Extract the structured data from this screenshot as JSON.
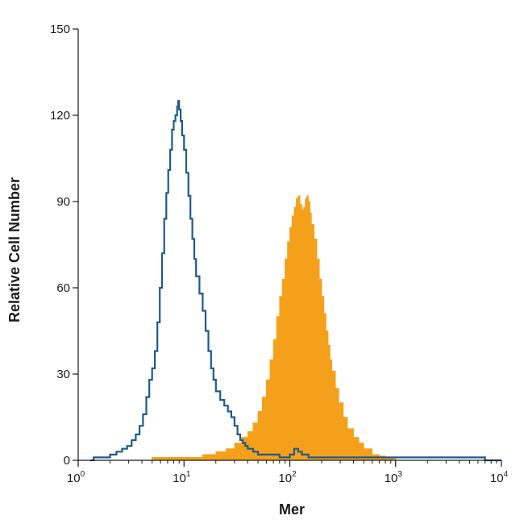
{
  "chart_data": {
    "type": "area",
    "xlabel": "Mer",
    "ylabel": "Relative Cell Number",
    "x_scale": "log",
    "xlim": [
      1,
      10000
    ],
    "ylim": [
      0,
      150
    ],
    "y_ticks": [
      0,
      30,
      60,
      90,
      120,
      150
    ],
    "x_ticks": [
      {
        "value": 1,
        "base": "10",
        "exp": "0"
      },
      {
        "value": 10,
        "base": "10",
        "exp": "1"
      },
      {
        "value": 100,
        "base": "10",
        "exp": "2"
      },
      {
        "value": 1000,
        "base": "10",
        "exp": "3"
      },
      {
        "value": 10000,
        "base": "10",
        "exp": "4"
      }
    ],
    "grid": false,
    "series": [
      {
        "style": "filled",
        "color": "#f5a01a",
        "points": [
          [
            1.5,
            0
          ],
          [
            3,
            0
          ],
          [
            5,
            1
          ],
          [
            10,
            1
          ],
          [
            15,
            2
          ],
          [
            20,
            3
          ],
          [
            25,
            4
          ],
          [
            30,
            6
          ],
          [
            35,
            8
          ],
          [
            40,
            10
          ],
          [
            45,
            13
          ],
          [
            50,
            17
          ],
          [
            55,
            22
          ],
          [
            60,
            28
          ],
          [
            65,
            35
          ],
          [
            70,
            42
          ],
          [
            75,
            50
          ],
          [
            80,
            57
          ],
          [
            85,
            63
          ],
          [
            90,
            70
          ],
          [
            95,
            76
          ],
          [
            100,
            81
          ],
          [
            105,
            85
          ],
          [
            110,
            88
          ],
          [
            115,
            91
          ],
          [
            120,
            92
          ],
          [
            125,
            89
          ],
          [
            130,
            87
          ],
          [
            135,
            88
          ],
          [
            140,
            91
          ],
          [
            145,
            92
          ],
          [
            150,
            90
          ],
          [
            155,
            86
          ],
          [
            160,
            82
          ],
          [
            170,
            77
          ],
          [
            180,
            70
          ],
          [
            190,
            63
          ],
          [
            200,
            57
          ],
          [
            210,
            51
          ],
          [
            220,
            45
          ],
          [
            230,
            40
          ],
          [
            240,
            35
          ],
          [
            250,
            31
          ],
          [
            270,
            25
          ],
          [
            290,
            20
          ],
          [
            320,
            15
          ],
          [
            350,
            11
          ],
          [
            400,
            8
          ],
          [
            450,
            6
          ],
          [
            500,
            4
          ],
          [
            600,
            2
          ],
          [
            700,
            1.5
          ],
          [
            800,
            1
          ],
          [
            1000,
            0
          ]
        ]
      },
      {
        "style": "line",
        "color": "#1e5a8c",
        "points": [
          [
            1.3,
            0
          ],
          [
            1.4,
            1
          ],
          [
            1.6,
            1
          ],
          [
            1.8,
            1
          ],
          [
            2,
            2
          ],
          [
            2.3,
            3
          ],
          [
            2.6,
            4
          ],
          [
            2.9,
            5
          ],
          [
            3.2,
            7
          ],
          [
            3.5,
            9
          ],
          [
            3.8,
            12
          ],
          [
            4.1,
            16
          ],
          [
            4.4,
            22
          ],
          [
            4.7,
            28
          ],
          [
            5.0,
            32
          ],
          [
            5.3,
            38
          ],
          [
            5.6,
            48
          ],
          [
            5.9,
            60
          ],
          [
            6.2,
            72
          ],
          [
            6.5,
            84
          ],
          [
            6.8,
            93
          ],
          [
            7.1,
            101
          ],
          [
            7.4,
            108
          ],
          [
            7.7,
            115
          ],
          [
            8.0,
            118
          ],
          [
            8.3,
            120
          ],
          [
            8.6,
            123
          ],
          [
            8.8,
            125
          ],
          [
            9.0,
            122
          ],
          [
            9.3,
            118
          ],
          [
            9.6,
            113
          ],
          [
            10,
            108
          ],
          [
            10.5,
            100
          ],
          [
            11,
            92
          ],
          [
            11.5,
            84
          ],
          [
            12,
            77
          ],
          [
            12.5,
            70
          ],
          [
            13,
            64
          ],
          [
            14,
            58
          ],
          [
            15,
            52
          ],
          [
            16,
            45
          ],
          [
            17,
            38
          ],
          [
            18,
            32
          ],
          [
            19,
            28
          ],
          [
            20,
            24
          ],
          [
            22,
            21
          ],
          [
            24,
            19
          ],
          [
            26,
            17
          ],
          [
            28,
            15
          ],
          [
            30,
            12
          ],
          [
            32,
            9
          ],
          [
            34,
            7
          ],
          [
            36,
            6
          ],
          [
            38,
            5
          ],
          [
            40,
            4
          ],
          [
            45,
            3
          ],
          [
            50,
            2
          ],
          [
            60,
            2
          ],
          [
            80,
            1
          ],
          [
            100,
            2
          ],
          [
            110,
            4
          ],
          [
            120,
            3
          ],
          [
            130,
            2
          ],
          [
            150,
            1
          ],
          [
            200,
            1
          ],
          [
            300,
            1
          ],
          [
            400,
            1
          ],
          [
            600,
            1
          ],
          [
            1000,
            1
          ],
          [
            2000,
            1
          ],
          [
            3000,
            1
          ],
          [
            5000,
            1
          ],
          [
            7000,
            0
          ],
          [
            10000,
            0
          ]
        ]
      }
    ]
  }
}
